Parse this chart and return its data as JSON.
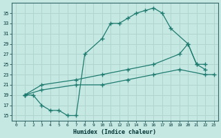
{
  "xlabel": "Humidex (Indice chaleur)",
  "bg_color": "#c5e8e3",
  "grid_color": "#b0d5cf",
  "line_color": "#1e7a6e",
  "xlim": [
    -0.5,
    23.5
  ],
  "ylim": [
    14,
    37
  ],
  "xticks": [
    0,
    1,
    2,
    3,
    4,
    5,
    6,
    7,
    8,
    9,
    10,
    11,
    12,
    13,
    14,
    15,
    16,
    17,
    18,
    19,
    20,
    21,
    22,
    23
  ],
  "yticks": [
    15,
    17,
    19,
    21,
    23,
    25,
    27,
    29,
    31,
    33,
    35
  ],
  "curve1_x": [
    1,
    2,
    3,
    4,
    5,
    6,
    7,
    8,
    10,
    11,
    12,
    13,
    14,
    15,
    16,
    17,
    18,
    20,
    21,
    22
  ],
  "curve1_y": [
    19,
    19,
    17,
    16,
    16,
    15,
    15,
    27,
    30,
    33,
    33,
    34,
    35,
    35.5,
    36,
    35,
    32,
    29,
    25,
    25
  ],
  "curve2_x": [
    1,
    3,
    7,
    10,
    13,
    16,
    19,
    20,
    21,
    22
  ],
  "curve2_y": [
    19,
    21,
    22,
    23,
    24,
    25,
    27,
    29,
    25,
    24
  ],
  "curve3_x": [
    1,
    3,
    7,
    10,
    13,
    16,
    19,
    22,
    23
  ],
  "curve3_y": [
    19,
    20,
    21,
    21,
    22,
    23,
    24,
    23,
    23
  ]
}
